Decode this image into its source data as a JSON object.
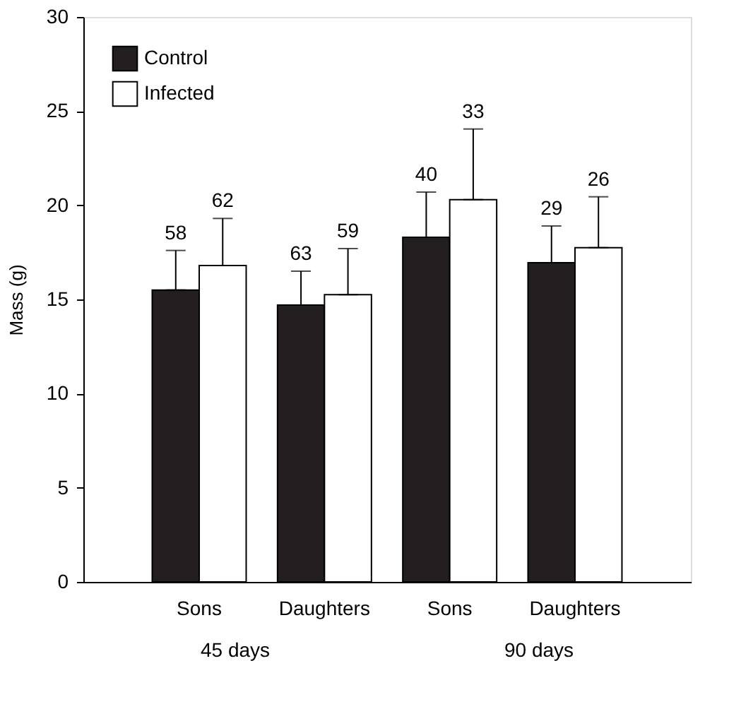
{
  "chart_data": {
    "type": "bar",
    "ylabel": "Mass (g)",
    "categories": [
      "Sons",
      "Daughters",
      "Sons",
      "Daughters"
    ],
    "series": [
      {
        "name": "Control",
        "color": "#231f20",
        "values": [
          15.5,
          14.7,
          18.3,
          16.95
        ],
        "errors": [
          [
            15.5,
            17.6
          ],
          [
            14.7,
            16.5
          ],
          [
            18.3,
            20.7
          ],
          [
            16.95,
            18.9
          ]
        ]
      },
      {
        "name": "Infected",
        "color": "#ffffff",
        "values": [
          16.8,
          15.25,
          20.3,
          17.75
        ],
        "errors": [
          [
            16.8,
            19.3
          ],
          [
            15.25,
            17.7
          ],
          [
            20.3,
            24.05
          ],
          [
            17.75,
            20.45
          ]
        ]
      }
    ],
    "annotations": [
      "58",
      "62",
      "63",
      "59",
      "40",
      "33",
      "29",
      "26",
      "45 days",
      "90 days"
    ],
    "ylim": [
      0,
      30
    ],
    "yticks": [
      0,
      5,
      10,
      15,
      20,
      25,
      30
    ],
    "grid": false,
    "legend": "top left"
  }
}
